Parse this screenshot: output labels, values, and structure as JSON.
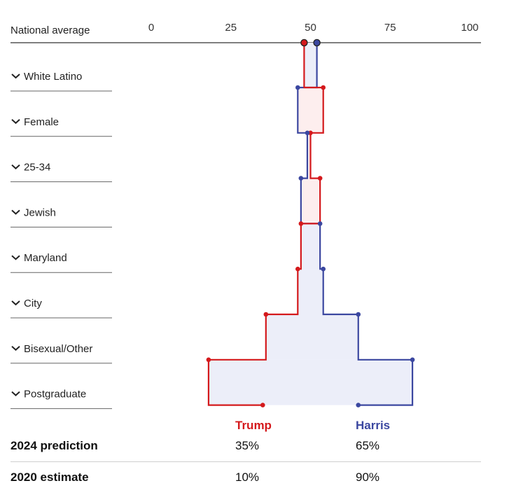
{
  "colors": {
    "trump": "#d4191c",
    "harris": "#3b47a0",
    "trump_fill": "#fdeeee",
    "harris_fill": "#eceef9",
    "axis": "#333333",
    "rule": "#666666"
  },
  "chart_data": {
    "type": "step",
    "axis_label": "National average",
    "xlim": [
      0,
      100
    ],
    "ticks": [
      0,
      25,
      50,
      75,
      100
    ],
    "national_average": {
      "trump": 48,
      "harris": 52
    },
    "groups": [
      "White Latino",
      "Female",
      "25-34",
      "Jewish",
      "Maryland",
      "City",
      "Bisexual/Other",
      "Postgraduate"
    ],
    "series": [
      {
        "name": "Trump",
        "values": [
          48,
          54,
          50,
          53,
          47,
          46,
          36,
          18,
          35
        ]
      },
      {
        "name": "Harris",
        "values": [
          52,
          46,
          49,
          47,
          53,
          54,
          65,
          82,
          65
        ]
      }
    ]
  },
  "legend": {
    "trump": "Trump",
    "harris": "Harris"
  },
  "summary": [
    {
      "label": "2024 prediction",
      "trump": "35%",
      "harris": "65%"
    },
    {
      "label": "2020 estimate",
      "trump": "10%",
      "harris": "90%"
    }
  ]
}
